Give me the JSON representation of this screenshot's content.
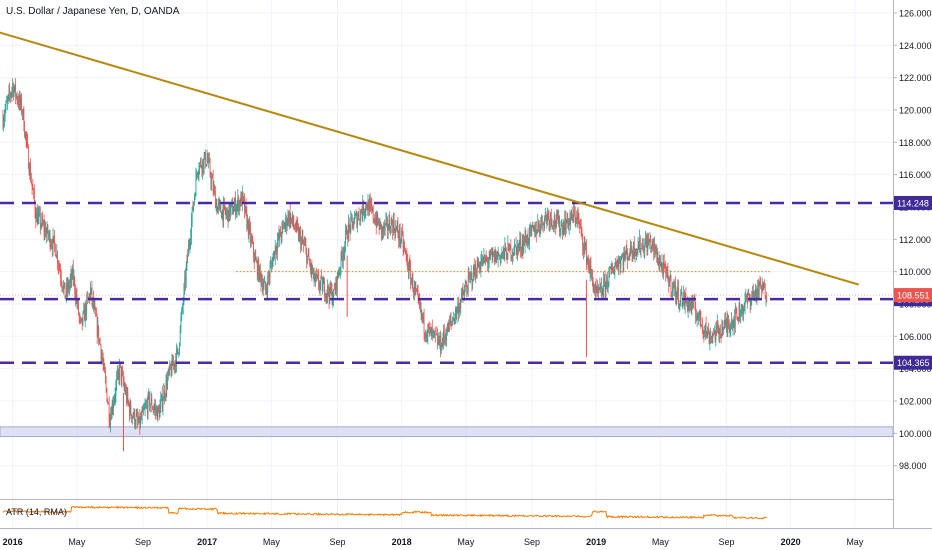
{
  "header": {
    "title": "U.S. Dollar / Japanese Yen, D, OANDA"
  },
  "indicator": {
    "label": "ATR (14, RMA)"
  },
  "colors": {
    "up": "#26a69a",
    "down": "#ef5350",
    "trendline": "#b8860b",
    "level": "#4b2aa8",
    "level_badge": "#3f2a96",
    "price_badge": "#ef5350",
    "dotted": "#f57c00",
    "atr": "#f57c00",
    "zone": "#c5cae9"
  },
  "chart_data": {
    "type": "candlestick",
    "symbol": "USDJPY",
    "timeframe": "D",
    "x_ticks": [
      "2016",
      "May",
      "Sep",
      "2017",
      "May",
      "Sep",
      "2018",
      "May",
      "Sep",
      "2019",
      "May",
      "Sep",
      "2020",
      "May"
    ],
    "y_ticks": [
      "98.000",
      "100.000",
      "102.000",
      "104.000",
      "106.000",
      "108.000",
      "110.000",
      "112.000",
      "114.000",
      "116.000",
      "118.000",
      "120.000",
      "122.000",
      "124.000",
      "126.000"
    ],
    "ylim": [
      96.0,
      126.8
    ],
    "price_path": [
      [
        2015.95,
        119.5
      ],
      [
        2016.0,
        121.5
      ],
      [
        2016.05,
        120.0
      ],
      [
        2016.08,
        117.0
      ],
      [
        2016.12,
        113.5
      ],
      [
        2016.17,
        112.5
      ],
      [
        2016.22,
        111.5
      ],
      [
        2016.27,
        108.5
      ],
      [
        2016.31,
        109.8
      ],
      [
        2016.35,
        106.5
      ],
      [
        2016.4,
        108.8
      ],
      [
        2016.45,
        105.5
      ],
      [
        2016.5,
        101.0
      ],
      [
        2016.55,
        104.0
      ],
      [
        2016.6,
        101.5
      ],
      [
        2016.65,
        100.5
      ],
      [
        2016.7,
        102.0
      ],
      [
        2016.75,
        101.2
      ],
      [
        2016.8,
        103.5
      ],
      [
        2016.85,
        105.0
      ],
      [
        2016.9,
        111.0
      ],
      [
        2016.95,
        116.5
      ],
      [
        2017.0,
        117.0
      ],
      [
        2017.05,
        114.0
      ],
      [
        2017.1,
        113.5
      ],
      [
        2017.18,
        114.5
      ],
      [
        2017.25,
        110.5
      ],
      [
        2017.3,
        108.8
      ],
      [
        2017.35,
        111.5
      ],
      [
        2017.42,
        113.5
      ],
      [
        2017.5,
        111.5
      ],
      [
        2017.55,
        109.5
      ],
      [
        2017.65,
        108.5
      ],
      [
        2017.72,
        112.5
      ],
      [
        2017.82,
        114.2
      ],
      [
        2017.9,
        112.5
      ],
      [
        2017.95,
        113.0
      ],
      [
        2018.0,
        112.0
      ],
      [
        2018.05,
        109.5
      ],
      [
        2018.12,
        106.5
      ],
      [
        2018.2,
        105.5
      ],
      [
        2018.28,
        107.5
      ],
      [
        2018.35,
        109.5
      ],
      [
        2018.4,
        110.5
      ],
      [
        2018.5,
        111.0
      ],
      [
        2018.6,
        111.5
      ],
      [
        2018.68,
        112.5
      ],
      [
        2018.75,
        113.5
      ],
      [
        2018.82,
        112.8
      ],
      [
        2018.9,
        113.5
      ],
      [
        2018.95,
        111.0
      ],
      [
        2019.0,
        108.5
      ],
      [
        2019.03,
        108.8
      ],
      [
        2019.1,
        110.5
      ],
      [
        2019.2,
        111.5
      ],
      [
        2019.28,
        111.8
      ],
      [
        2019.35,
        110.0
      ],
      [
        2019.42,
        108.5
      ],
      [
        2019.5,
        107.8
      ],
      [
        2019.58,
        106.0
      ],
      [
        2019.65,
        106.5
      ],
      [
        2019.72,
        107.2
      ],
      [
        2019.78,
        108.3
      ],
      [
        2019.85,
        109.0
      ],
      [
        2019.88,
        108.6
      ]
    ],
    "trendline": {
      "from": [
        2015.93,
        124.8
      ],
      "to": [
        2020.35,
        109.2
      ]
    },
    "horizontal_levels": [
      {
        "price": 114.248,
        "label": "114.248"
      },
      {
        "price": 108.298,
        "label": "108.298"
      },
      {
        "price": 104.365,
        "label": "104.365"
      }
    ],
    "support_zone": {
      "from": 99.8,
      "to": 100.4
    },
    "dotted_level": {
      "price": 110.0,
      "from": 2017.15,
      "to": 2019.9
    },
    "last_price": {
      "price": 108.551,
      "label": "108.551"
    },
    "atr": {
      "name": "ATR (14, RMA)"
    }
  }
}
